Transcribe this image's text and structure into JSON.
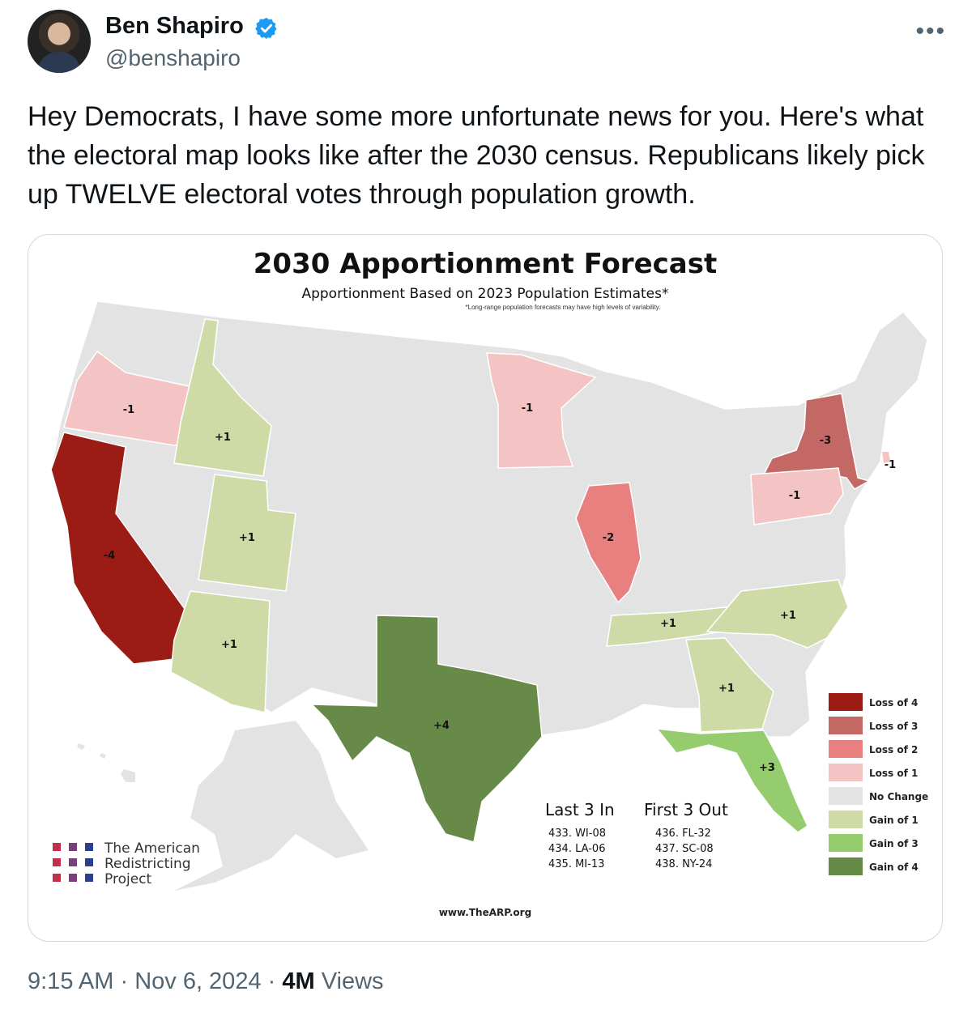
{
  "author": {
    "name": "Ben Shapiro",
    "handle": "@benshapiro"
  },
  "tweet": {
    "text": "Hey Democrats, I have some more unfortunate news for you. Here's what the electoral map looks like after the 2030 census. Republicans likely pick up TWELVE electoral votes through population growth."
  },
  "icons": {
    "verified": "verified-badge-icon",
    "more": "more-options-icon"
  },
  "colors": {
    "loss4": "#9b1c14",
    "loss3": "#c46866",
    "loss2": "#e88080",
    "loss1": "#f4c3c3",
    "none": "#e3e3e3",
    "gain1": "#cfdba6",
    "gain3": "#95cc6d",
    "gain4": "#678a49"
  },
  "map": {
    "title": "2030 Apportionment Forecast",
    "subtitle": "Apportionment Based on 2023 Population Estimates*",
    "note": "*Long-range population forecasts may have high levels of variability.",
    "state_labels": {
      "or": "-1",
      "id": "+1",
      "ut": "+1",
      "az": "+1",
      "ca": "-4",
      "tx": "+4",
      "mn": "-1",
      "il": "-2",
      "tn": "+1",
      "nc": "+1",
      "ga": "+1",
      "fl": "+3",
      "ny": "-3",
      "pa": "-1",
      "ri": "-1"
    },
    "legend": [
      "Loss of 4",
      "Loss of 3",
      "Loss of 2",
      "Loss of 1",
      "No Change",
      "Gain of 1",
      "Gain of 3",
      "Gain of 4"
    ],
    "last_in": {
      "title": "Last 3 In",
      "items": [
        "433. WI-08",
        "434. LA-06",
        "435. MI-13"
      ]
    },
    "first_out": {
      "title": "First 3 Out",
      "items": [
        "436. FL-32",
        "437. SC-08",
        "438. NY-24"
      ]
    },
    "org": [
      "The American",
      "Redistricting",
      "Project"
    ],
    "url": "www.TheARP.org"
  },
  "meta": {
    "time": "9:15 AM",
    "sep1": " · ",
    "date": "Nov 6, 2024",
    "sep2": " · ",
    "views": "4M",
    "views_label": " Views"
  }
}
